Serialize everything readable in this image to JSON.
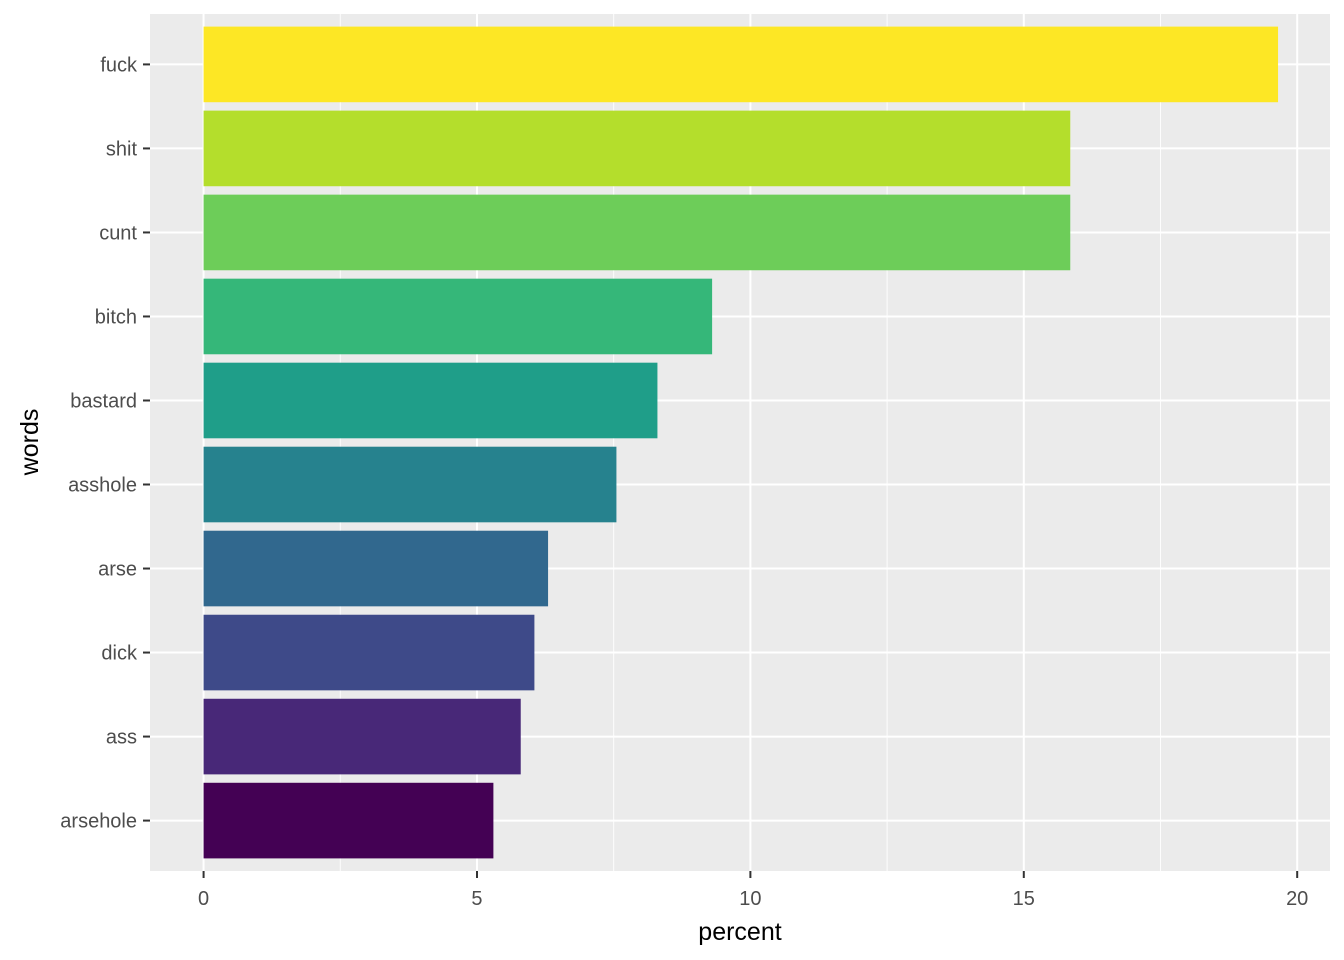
{
  "chart_data": {
    "type": "bar",
    "orientation": "horizontal",
    "categories": [
      "arsehole",
      "ass",
      "dick",
      "arse",
      "asshole",
      "bastard",
      "bitch",
      "cunt",
      "shit",
      "fuck"
    ],
    "values": [
      5.3,
      5.8,
      6.05,
      6.3,
      7.55,
      8.3,
      9.3,
      15.85,
      15.85,
      19.65
    ],
    "colors": [
      "#440154",
      "#482878",
      "#3E4A89",
      "#31688E",
      "#26828E",
      "#1F9E89",
      "#35B779",
      "#6DCD59",
      "#B4DE2C",
      "#FDE725"
    ],
    "xlabel": "percent",
    "ylabel": "words",
    "xlim": [
      -0.98,
      20.6
    ],
    "x_ticks": [
      0,
      5,
      10,
      15,
      20
    ],
    "x_tick_labels": [
      "0",
      "5",
      "10",
      "15",
      "20"
    ],
    "grid": true,
    "legend": "none",
    "panel_background": "#EBEBEB",
    "gridline_color": "#FFFFFF"
  }
}
